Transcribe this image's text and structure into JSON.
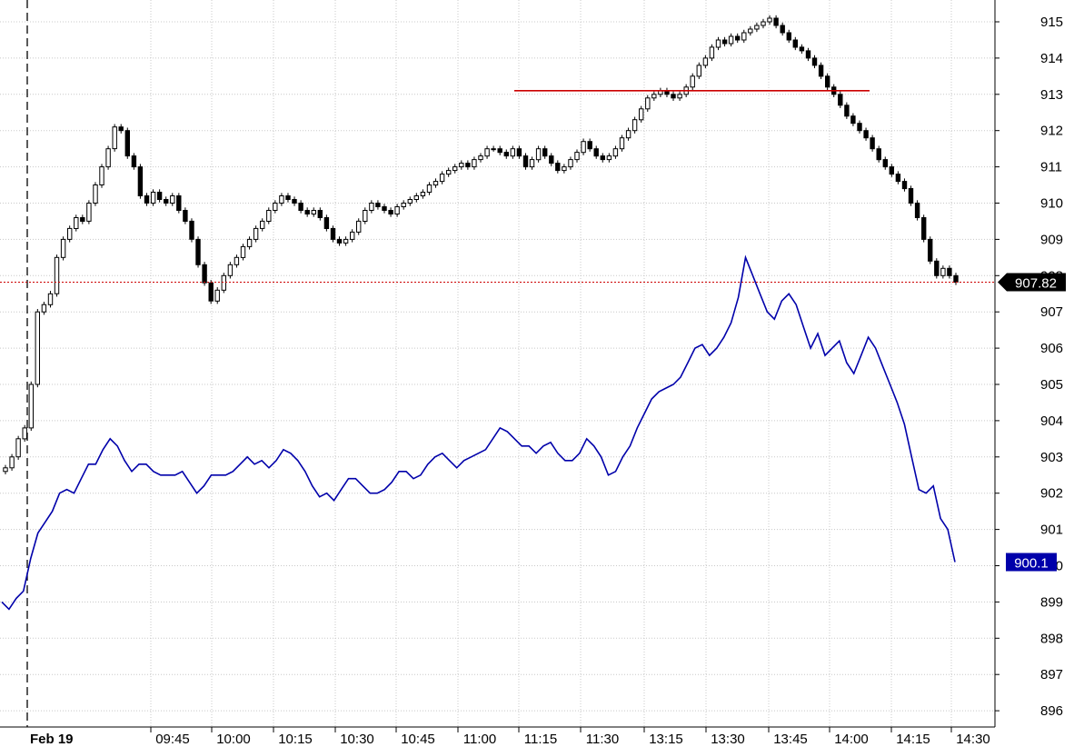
{
  "chart_data": {
    "type": "line",
    "title": "",
    "date_label": "Feb 19",
    "y_axis": {
      "min": 895.5,
      "max": 915.5,
      "ticks": [
        915,
        914,
        913,
        912,
        911,
        910,
        909,
        908,
        907,
        906,
        905,
        904,
        903,
        902,
        901,
        900,
        899,
        898,
        897,
        896
      ]
    },
    "x_tick_labels": [
      "09:45",
      "10:00",
      "10:15",
      "10:30",
      "10:45",
      "11:00",
      "11:15",
      "11:30",
      "13:15",
      "13:30",
      "13:45",
      "14:00",
      "14:15",
      "14:30"
    ],
    "grid": true,
    "resistance_line": {
      "price": 913.1,
      "color": "#cc0000"
    },
    "last_price_line": {
      "price": 907.82,
      "color": "#cc0000",
      "style": "dotted"
    },
    "last_price_tag": {
      "text": "907.82",
      "color": "#000000"
    },
    "series": [
      {
        "style": "candlestick",
        "color": "#000000",
        "close": [
          902.7,
          903.0,
          903.5,
          903.8,
          905.0,
          907.0,
          907.2,
          907.5,
          908.5,
          909.0,
          909.3,
          909.6,
          909.5,
          910.0,
          910.5,
          911.0,
          911.5,
          912.1,
          912.0,
          911.3,
          911.0,
          910.2,
          910.0,
          910.3,
          910.1,
          910.0,
          910.2,
          909.8,
          909.5,
          909.0,
          908.3,
          907.8,
          907.3,
          907.6,
          908.0,
          908.3,
          908.5,
          908.8,
          909.0,
          909.3,
          909.5,
          909.8,
          910.0,
          910.2,
          910.1,
          910.0,
          909.8,
          909.7,
          909.8,
          909.6,
          909.3,
          909.0,
          908.9,
          909.0,
          909.2,
          909.5,
          909.8,
          910.0,
          909.9,
          909.8,
          909.7,
          909.9,
          910.0,
          910.1,
          910.2,
          910.3,
          910.5,
          910.6,
          910.8,
          910.9,
          911.0,
          911.1,
          911.0,
          911.2,
          911.3,
          911.5,
          911.5,
          911.4,
          911.3,
          911.5,
          911.3,
          911.0,
          911.2,
          911.5,
          911.3,
          911.1,
          910.9,
          911.0,
          911.2,
          911.4,
          911.7,
          911.5,
          911.3,
          911.2,
          911.3,
          911.5,
          911.8,
          912.0,
          912.3,
          912.6,
          912.9,
          913.0,
          913.1,
          913.0,
          912.9,
          913.0,
          913.2,
          913.5,
          913.8,
          914.0,
          914.3,
          914.5,
          914.4,
          914.6,
          914.5,
          914.7,
          914.8,
          914.9,
          915.0,
          915.1,
          914.9,
          914.7,
          914.5,
          914.3,
          914.2,
          914.0,
          913.8,
          913.5,
          913.2,
          913.0,
          912.7,
          912.4,
          912.2,
          912.0,
          911.8,
          911.5,
          911.2,
          911.0,
          910.8,
          910.6,
          910.4,
          910.0,
          909.6,
          909.0,
          908.4,
          908.0,
          908.2,
          908.0,
          907.82
        ],
        "last_label": "907.82"
      },
      {
        "style": "line",
        "color": "#0000aa",
        "values": [
          899.0,
          898.8,
          899.1,
          899.3,
          900.2,
          900.9,
          901.2,
          901.5,
          902.0,
          902.1,
          902.0,
          902.4,
          902.8,
          902.8,
          903.2,
          903.5,
          903.3,
          902.9,
          902.6,
          902.8,
          902.8,
          902.6,
          902.5,
          902.5,
          902.5,
          902.6,
          902.3,
          902.0,
          902.2,
          902.5,
          902.5,
          902.5,
          902.6,
          902.8,
          903.0,
          902.8,
          902.9,
          902.7,
          902.9,
          903.2,
          903.1,
          902.9,
          902.6,
          902.2,
          901.9,
          902.0,
          901.8,
          902.1,
          902.4,
          902.4,
          902.2,
          902.0,
          902.0,
          902.1,
          902.3,
          902.6,
          902.6,
          902.4,
          902.5,
          902.8,
          903.0,
          903.1,
          902.9,
          902.7,
          902.9,
          903.0,
          903.1,
          903.2,
          903.5,
          903.8,
          903.7,
          903.5,
          903.3,
          903.3,
          903.1,
          903.3,
          903.4,
          903.1,
          902.9,
          902.9,
          903.1,
          903.5,
          903.3,
          903.0,
          902.5,
          902.6,
          903.0,
          903.3,
          903.8,
          904.2,
          904.6,
          904.8,
          904.9,
          905.0,
          905.2,
          905.6,
          906.0,
          906.1,
          905.8,
          906.0,
          906.3,
          906.7,
          907.4,
          908.5,
          908.0,
          907.5,
          907.0,
          906.8,
          907.3,
          907.5,
          907.2,
          906.6,
          906.0,
          906.4,
          905.8,
          906.0,
          906.2,
          905.6,
          905.3,
          905.8,
          906.3,
          906.0,
          905.5,
          905.0,
          904.5,
          903.9,
          903.0,
          902.1,
          902.0,
          902.2,
          901.3,
          901.0,
          900.1
        ],
        "last_label": "900.1"
      }
    ]
  }
}
